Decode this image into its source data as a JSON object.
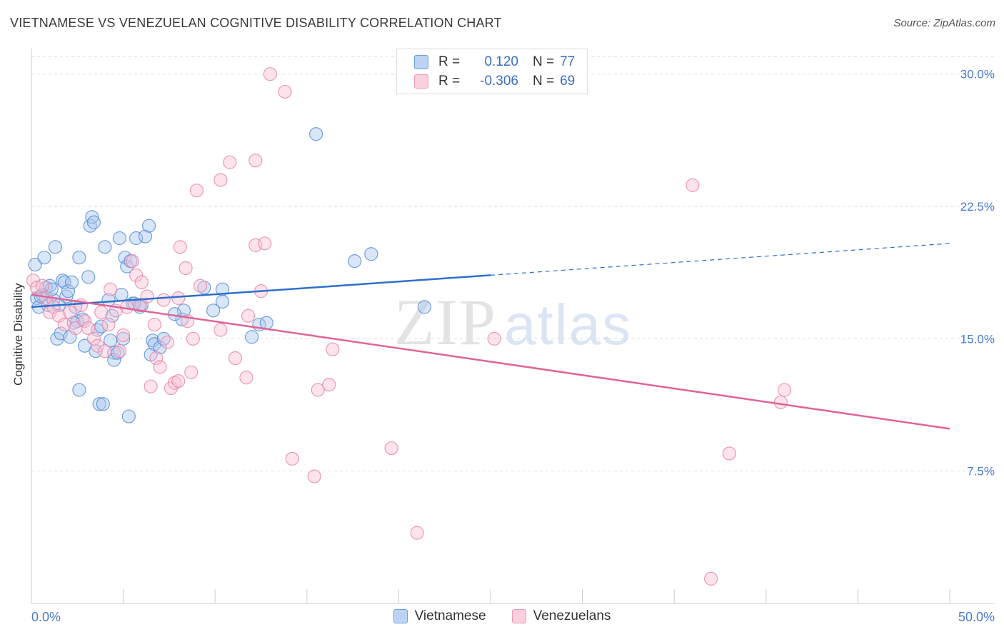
{
  "title": "VIETNAMESE VS VENEZUELAN COGNITIVE DISABILITY CORRELATION CHART",
  "source": "Source: ZipAtlas.com",
  "watermark": {
    "zip": "ZIP",
    "atlas": "atlas"
  },
  "legend": [
    {
      "r_label": "R =",
      "r_value": "0.120",
      "n_label": "N =",
      "n_value": "77"
    },
    {
      "r_label": "R =",
      "r_value": "-0.306",
      "n_label": "N =",
      "n_value": "69"
    }
  ],
  "colors": {
    "vietnamese_fill": "#aac8f0",
    "vietnamese_stroke": "#5a8fd6",
    "vietnamese_line": "#2f6fcc",
    "venezuelan_fill": "#f8c0d4",
    "venezuelan_stroke": "#e88aaa",
    "venezuelan_line": "#e06496",
    "grid": "#dddddd",
    "axis_label": "#4a7ccc"
  },
  "chart_data": {
    "type": "scatter",
    "ylabel": "Cognitive Disability",
    "xlim": [
      0,
      50
    ],
    "ylim": [
      0,
      31
    ],
    "x_tick_labels": [
      "0.0%",
      "50.0%"
    ],
    "y_ticks": [
      7.5,
      15.0,
      22.5,
      30.0
    ],
    "y_tick_labels": [
      "7.5%",
      "15.0%",
      "22.5%",
      "30.0%"
    ],
    "grid": true,
    "legend_position": "top-center",
    "series": [
      {
        "name": "Vietnamese",
        "trend": {
          "x0": 0,
          "y0": 16.8,
          "x1": 25,
          "y1": 18.6,
          "dashed_to_x": 50,
          "dashed_to_y": 20.4
        },
        "points": [
          [
            0.2,
            19.2
          ],
          [
            0.3,
            17.3
          ],
          [
            0.4,
            16.8
          ],
          [
            0.6,
            17.5
          ],
          [
            0.7,
            19.6
          ],
          [
            0.8,
            17.9
          ],
          [
            0.9,
            16.9
          ],
          [
            1.0,
            18.0
          ],
          [
            1.2,
            17.2
          ],
          [
            1.3,
            20.2
          ],
          [
            1.4,
            15.0
          ],
          [
            1.5,
            16.9
          ],
          [
            1.6,
            15.3
          ],
          [
            1.7,
            18.3
          ],
          [
            1.8,
            18.2
          ],
          [
            1.9,
            17.4
          ],
          [
            2.0,
            17.7
          ],
          [
            2.1,
            15.1
          ],
          [
            2.2,
            18.2
          ],
          [
            2.4,
            16.8
          ],
          [
            2.5,
            16.0
          ],
          [
            2.6,
            19.6
          ],
          [
            2.6,
            12.1
          ],
          [
            2.8,
            16.1
          ],
          [
            2.9,
            14.6
          ],
          [
            3.1,
            18.5
          ],
          [
            3.2,
            21.4
          ],
          [
            3.3,
            21.9
          ],
          [
            3.4,
            21.6
          ],
          [
            3.5,
            14.3
          ],
          [
            3.6,
            15.5
          ],
          [
            3.7,
            11.3
          ],
          [
            3.9,
            11.3
          ],
          [
            4.0,
            20.2
          ],
          [
            4.2,
            17.2
          ],
          [
            4.3,
            14.9
          ],
          [
            4.4,
            16.3
          ],
          [
            4.5,
            14.2
          ],
          [
            4.5,
            13.8
          ],
          [
            4.7,
            14.2
          ],
          [
            4.8,
            20.7
          ],
          [
            4.9,
            17.5
          ],
          [
            5.0,
            15.0
          ],
          [
            5.1,
            19.6
          ],
          [
            5.2,
            19.1
          ],
          [
            5.3,
            10.6
          ],
          [
            5.4,
            19.4
          ],
          [
            5.5,
            17.0
          ],
          [
            5.7,
            20.7
          ],
          [
            5.9,
            16.8
          ],
          [
            6.0,
            16.9
          ],
          [
            6.2,
            20.8
          ],
          [
            6.4,
            21.4
          ],
          [
            6.5,
            14.1
          ],
          [
            6.6,
            14.9
          ],
          [
            6.7,
            14.7
          ],
          [
            7.0,
            14.5
          ],
          [
            7.2,
            15.0
          ],
          [
            8.2,
            16.1
          ],
          [
            8.3,
            16.6
          ],
          [
            9.4,
            17.9
          ],
          [
            9.9,
            16.6
          ],
          [
            10.4,
            17.8
          ],
          [
            10.4,
            17.1
          ],
          [
            12.0,
            15.1
          ],
          [
            12.4,
            15.8
          ],
          [
            15.5,
            26.6
          ],
          [
            17.6,
            19.4
          ],
          [
            18.5,
            19.8
          ],
          [
            21.4,
            16.8
          ],
          [
            0.5,
            17.4
          ],
          [
            1.1,
            17.8
          ],
          [
            2.3,
            15.9
          ],
          [
            3.8,
            15.7
          ],
          [
            5.6,
            17.0
          ],
          [
            7.8,
            16.4
          ],
          [
            12.8,
            15.9
          ]
        ]
      },
      {
        "name": "Venezuelans",
        "trend": {
          "x0": 0,
          "y0": 17.5,
          "x1": 50,
          "y1": 9.9
        },
        "points": [
          [
            0.1,
            18.3
          ],
          [
            0.3,
            17.9
          ],
          [
            0.6,
            18.0
          ],
          [
            0.8,
            17.3
          ],
          [
            1.0,
            16.5
          ],
          [
            1.2,
            16.8
          ],
          [
            1.5,
            16.3
          ],
          [
            1.8,
            15.8
          ],
          [
            2.1,
            16.5
          ],
          [
            2.4,
            15.6
          ],
          [
            2.7,
            16.9
          ],
          [
            2.9,
            16.0
          ],
          [
            3.1,
            15.6
          ],
          [
            3.4,
            15.0
          ],
          [
            3.6,
            14.6
          ],
          [
            3.8,
            16.5
          ],
          [
            4.0,
            14.3
          ],
          [
            4.2,
            15.8
          ],
          [
            4.3,
            17.8
          ],
          [
            4.6,
            16.6
          ],
          [
            4.8,
            14.3
          ],
          [
            5.0,
            15.2
          ],
          [
            5.2,
            16.8
          ],
          [
            5.5,
            19.4
          ],
          [
            5.7,
            18.6
          ],
          [
            5.9,
            16.9
          ],
          [
            6.0,
            18.2
          ],
          [
            6.3,
            17.4
          ],
          [
            6.5,
            12.3
          ],
          [
            6.7,
            15.8
          ],
          [
            6.8,
            13.9
          ],
          [
            7.0,
            13.4
          ],
          [
            7.2,
            17.2
          ],
          [
            7.4,
            14.8
          ],
          [
            7.6,
            12.2
          ],
          [
            7.8,
            12.5
          ],
          [
            8.0,
            17.3
          ],
          [
            8.0,
            12.6
          ],
          [
            8.1,
            20.2
          ],
          [
            8.4,
            19.0
          ],
          [
            8.5,
            16.0
          ],
          [
            8.7,
            13.1
          ],
          [
            8.8,
            15.0
          ],
          [
            9.0,
            23.4
          ],
          [
            9.2,
            18.0
          ],
          [
            10.3,
            24.0
          ],
          [
            10.3,
            15.5
          ],
          [
            10.8,
            25.0
          ],
          [
            11.1,
            13.9
          ],
          [
            11.7,
            12.8
          ],
          [
            11.8,
            16.3
          ],
          [
            12.2,
            25.1
          ],
          [
            12.2,
            20.3
          ],
          [
            12.5,
            17.7
          ],
          [
            12.7,
            20.4
          ],
          [
            13.0,
            30.0
          ],
          [
            13.8,
            29.0
          ],
          [
            14.2,
            8.2
          ],
          [
            15.4,
            7.2
          ],
          [
            15.6,
            12.1
          ],
          [
            16.2,
            12.4
          ],
          [
            16.4,
            14.4
          ],
          [
            19.6,
            8.8
          ],
          [
            21.0,
            4.0
          ],
          [
            25.2,
            15.0
          ],
          [
            36.0,
            23.7
          ],
          [
            37.0,
            1.4
          ],
          [
            38.0,
            8.5
          ],
          [
            40.8,
            11.4
          ],
          [
            41.0,
            12.1
          ]
        ]
      }
    ]
  }
}
